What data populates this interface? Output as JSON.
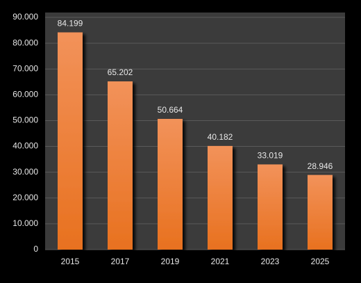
{
  "chart_data": {
    "type": "bar",
    "categories": [
      "2015",
      "2017",
      "2019",
      "2021",
      "2023",
      "2025"
    ],
    "values": [
      84199,
      65202,
      50664,
      40182,
      33019,
      28946
    ],
    "value_labels": [
      "84.199",
      "65.202",
      "50.664",
      "40.182",
      "33.019",
      "28.946"
    ],
    "color": "#f07d2e",
    "ylim": [
      0,
      90000
    ],
    "yticks": [
      0,
      {
        "value": 10000,
        "label": "10.000"
      },
      {
        "value": 20000,
        "label": "20.000"
      },
      {
        "value": 30000,
        "label": "30.000"
      },
      {
        "value": 40000,
        "label": "40.000"
      },
      {
        "value": 50000,
        "label": "50.000"
      },
      {
        "value": 60000,
        "label": "60.000"
      },
      {
        "value": 70000,
        "label": "70.000"
      },
      {
        "value": 80000,
        "label": "80.000"
      },
      {
        "value": 90000,
        "label": "90.000"
      }
    ],
    "grid": true
  }
}
